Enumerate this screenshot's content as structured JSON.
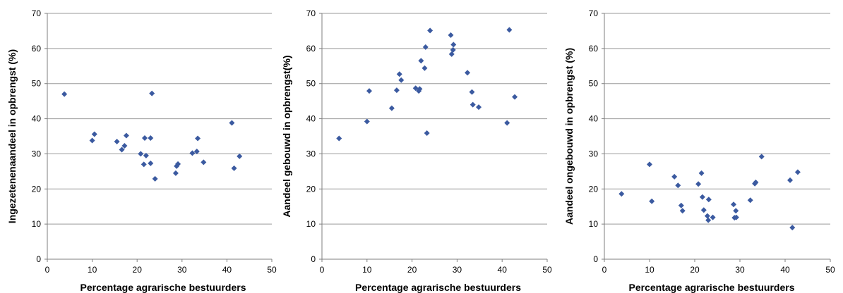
{
  "chart_data": [
    {
      "type": "scatter",
      "xlabel": "Percentage agrarische bestuurders",
      "ylabel": "Ingezetenenaandeel in opbrengst (%)",
      "xlim": [
        0,
        50
      ],
      "ylim": [
        0,
        70
      ],
      "xticks": [
        "0",
        "10",
        "20",
        "30",
        "40",
        "50"
      ],
      "yticks": [
        "0",
        "10",
        "20",
        "30",
        "40",
        "50",
        "60",
        "70"
      ],
      "grid": "horizontal",
      "marker": "diamond",
      "marker_color": "#3b5aa0",
      "points": [
        {
          "x": 3.8,
          "y": 47.0
        },
        {
          "x": 10.0,
          "y": 33.8
        },
        {
          "x": 10.5,
          "y": 35.6
        },
        {
          "x": 15.5,
          "y": 33.5
        },
        {
          "x": 16.6,
          "y": 31.2
        },
        {
          "x": 17.2,
          "y": 32.3
        },
        {
          "x": 17.6,
          "y": 35.2
        },
        {
          "x": 20.8,
          "y": 30.0
        },
        {
          "x": 21.5,
          "y": 27.0
        },
        {
          "x": 21.7,
          "y": 34.5
        },
        {
          "x": 22.0,
          "y": 29.5
        },
        {
          "x": 23.0,
          "y": 34.5
        },
        {
          "x": 23.0,
          "y": 27.3
        },
        {
          "x": 23.3,
          "y": 47.2
        },
        {
          "x": 24.0,
          "y": 22.9
        },
        {
          "x": 28.6,
          "y": 24.5
        },
        {
          "x": 28.8,
          "y": 26.5
        },
        {
          "x": 29.1,
          "y": 27.1
        },
        {
          "x": 32.3,
          "y": 30.2
        },
        {
          "x": 33.3,
          "y": 30.7
        },
        {
          "x": 33.5,
          "y": 34.4
        },
        {
          "x": 34.8,
          "y": 27.6
        },
        {
          "x": 41.1,
          "y": 38.8
        },
        {
          "x": 41.6,
          "y": 25.9
        },
        {
          "x": 42.8,
          "y": 29.3
        }
      ]
    },
    {
      "type": "scatter",
      "xlabel": "Percentage agrarische bestuurders",
      "ylabel": "Aandeel gebouwd in opbrengst(%)",
      "xlim": [
        0,
        50
      ],
      "ylim": [
        0,
        70
      ],
      "xticks": [
        "0",
        "10",
        "20",
        "30",
        "40",
        "50"
      ],
      "yticks": [
        "0",
        "10",
        "20",
        "30",
        "40",
        "50",
        "60",
        "70"
      ],
      "grid": "horizontal",
      "marker": "diamond",
      "marker_color": "#3b5aa0",
      "points": [
        {
          "x": 3.8,
          "y": 34.4
        },
        {
          "x": 10.0,
          "y": 39.2
        },
        {
          "x": 10.5,
          "y": 47.9
        },
        {
          "x": 15.5,
          "y": 43.0
        },
        {
          "x": 16.6,
          "y": 48.1
        },
        {
          "x": 17.2,
          "y": 52.7
        },
        {
          "x": 17.6,
          "y": 51.0
        },
        {
          "x": 20.8,
          "y": 48.7
        },
        {
          "x": 21.5,
          "y": 47.9
        },
        {
          "x": 21.7,
          "y": 48.5
        },
        {
          "x": 22.0,
          "y": 56.5
        },
        {
          "x": 22.8,
          "y": 54.4
        },
        {
          "x": 23.0,
          "y": 60.4
        },
        {
          "x": 23.3,
          "y": 35.9
        },
        {
          "x": 24.0,
          "y": 65.1
        },
        {
          "x": 28.6,
          "y": 63.8
        },
        {
          "x": 28.8,
          "y": 58.4
        },
        {
          "x": 29.1,
          "y": 59.6
        },
        {
          "x": 29.2,
          "y": 61.1
        },
        {
          "x": 32.3,
          "y": 53.1
        },
        {
          "x": 33.3,
          "y": 47.6
        },
        {
          "x": 33.5,
          "y": 44.0
        },
        {
          "x": 34.8,
          "y": 43.3
        },
        {
          "x": 41.1,
          "y": 38.8
        },
        {
          "x": 41.6,
          "y": 65.3
        },
        {
          "x": 42.8,
          "y": 46.2
        }
      ]
    },
    {
      "type": "scatter",
      "xlabel": "Percentage agrarische bestuurders",
      "ylabel": "Aandeel ongebouwd in opbrengst (%)",
      "xlim": [
        0,
        50
      ],
      "ylim": [
        0,
        70
      ],
      "xticks": [
        "0",
        "10",
        "20",
        "30",
        "40",
        "50"
      ],
      "yticks": [
        "0",
        "10",
        "20",
        "30",
        "40",
        "50",
        "60",
        "70"
      ],
      "grid": "horizontal",
      "marker": "diamond",
      "marker_color": "#3b5aa0",
      "points": [
        {
          "x": 3.8,
          "y": 18.6
        },
        {
          "x": 10.0,
          "y": 27.0
        },
        {
          "x": 10.5,
          "y": 16.5
        },
        {
          "x": 15.5,
          "y": 23.5
        },
        {
          "x": 16.3,
          "y": 21.0
        },
        {
          "x": 17.0,
          "y": 15.3
        },
        {
          "x": 17.3,
          "y": 13.8
        },
        {
          "x": 20.8,
          "y": 21.4
        },
        {
          "x": 21.5,
          "y": 24.5
        },
        {
          "x": 21.7,
          "y": 17.7
        },
        {
          "x": 22.0,
          "y": 14.0
        },
        {
          "x": 22.8,
          "y": 12.3
        },
        {
          "x": 23.0,
          "y": 11.1
        },
        {
          "x": 23.1,
          "y": 17.0
        },
        {
          "x": 24.0,
          "y": 11.9
        },
        {
          "x": 28.6,
          "y": 15.6
        },
        {
          "x": 28.8,
          "y": 11.8
        },
        {
          "x": 29.1,
          "y": 13.8
        },
        {
          "x": 29.2,
          "y": 11.9
        },
        {
          "x": 32.3,
          "y": 16.8
        },
        {
          "x": 33.3,
          "y": 21.5
        },
        {
          "x": 33.5,
          "y": 21.9
        },
        {
          "x": 34.8,
          "y": 29.2
        },
        {
          "x": 41.1,
          "y": 22.5
        },
        {
          "x": 41.6,
          "y": 9.0
        },
        {
          "x": 42.8,
          "y": 24.8
        }
      ]
    }
  ]
}
